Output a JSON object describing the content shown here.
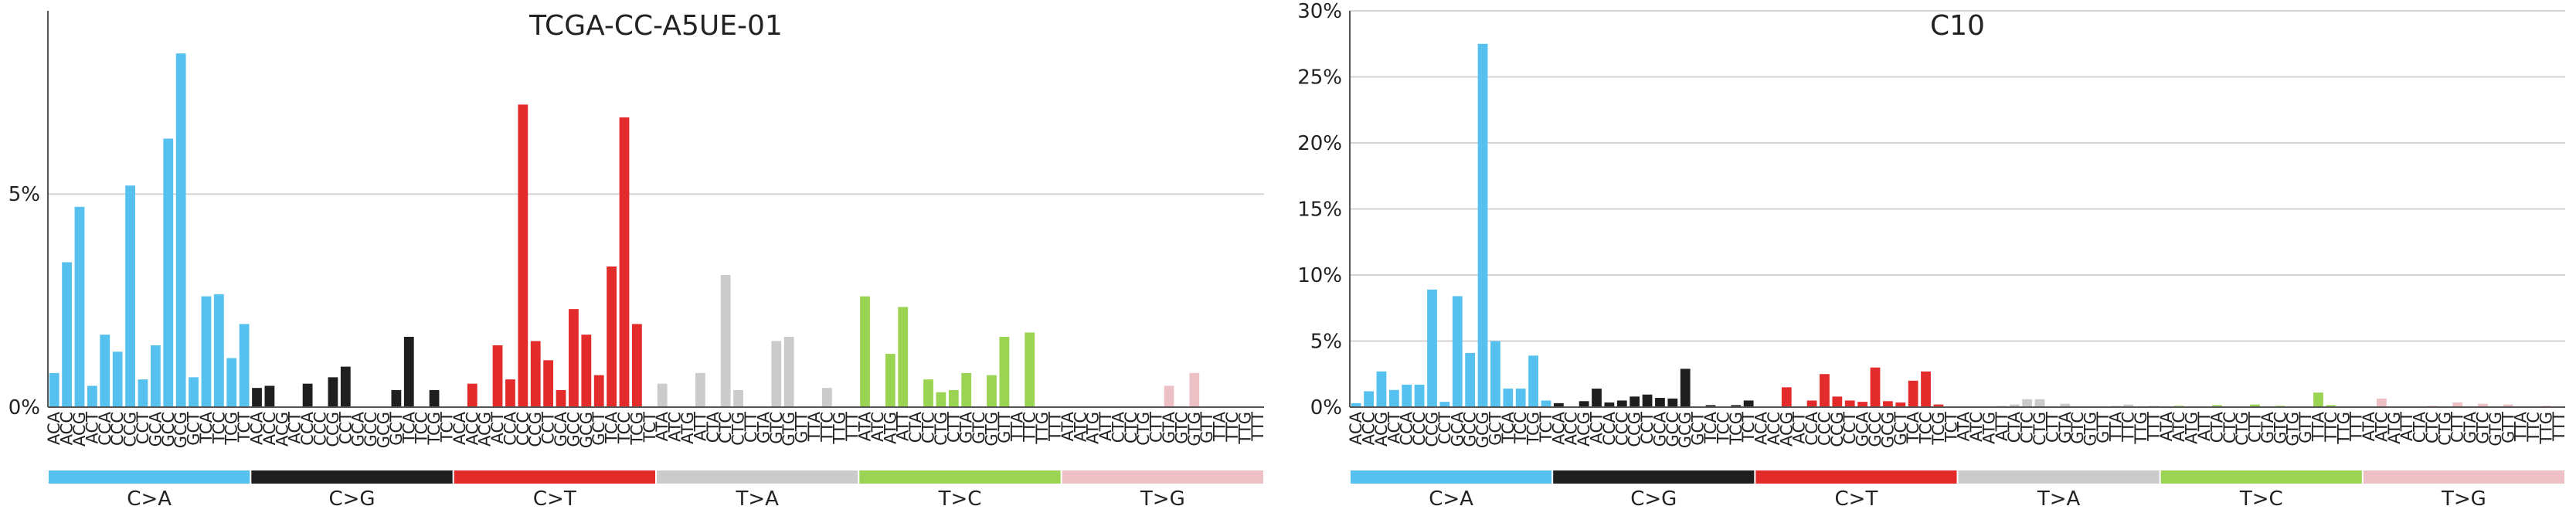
{
  "contexts": [
    "ACA",
    "ACC",
    "ACG",
    "ACT",
    "CCA",
    "CCC",
    "CCG",
    "CCT",
    "GCA",
    "GCC",
    "GCG",
    "GCT",
    "TCA",
    "TCC",
    "TCG",
    "TCT"
  ],
  "colors": {
    "C>A": "#56c1ee",
    "C>G": "#1f1f1f",
    "C>T": "#e32b2b",
    "T>A": "#cbcbcb",
    "T>C": "#9bd352",
    "T>G": "#edc0c5"
  },
  "chart_data": [
    {
      "type": "bar",
      "title": "TCGA-CC-A5UE-01",
      "ylim": [
        0,
        0.093
      ],
      "yticks": [
        0,
        0.05
      ],
      "ytick_labels": [
        "0%",
        "5%"
      ],
      "grid": true,
      "series": [
        {
          "name": "C>A",
          "values": [
            0.008,
            0.034,
            0.047,
            0.005,
            0.017,
            0.013,
            0.052,
            0.0065,
            0.0145,
            0.063,
            0.083,
            0.007,
            0.026,
            0.0265,
            0.0115,
            0.0195
          ]
        },
        {
          "name": "C>G",
          "values": [
            0.0045,
            0.005,
            0,
            0,
            0.0055,
            0,
            0.007,
            0.0095,
            0,
            0,
            0,
            0.004,
            0.0165,
            0,
            0.004,
            0
          ]
        },
        {
          "name": "C>T",
          "values": [
            0,
            0.0055,
            0,
            0.0145,
            0.0065,
            0.071,
            0.0155,
            0.011,
            0.004,
            0.023,
            0.017,
            0.0075,
            0.033,
            0.068,
            0.0195,
            0
          ]
        },
        {
          "name": "T>A",
          "values": [
            0.0055,
            0,
            0,
            0.008,
            0,
            0.031,
            0.004,
            0,
            0,
            0.0155,
            0.0165,
            0,
            0,
            0.0045,
            0,
            0
          ]
        },
        {
          "name": "T>C",
          "values": [
            0.026,
            0,
            0.0125,
            0.0235,
            0,
            0.0065,
            0.0035,
            0.004,
            0.008,
            0,
            0.0075,
            0.0165,
            0,
            0.0175,
            0,
            0
          ]
        },
        {
          "name": "T>G",
          "values": [
            0,
            0,
            0,
            0,
            0,
            0,
            0,
            0,
            0.005,
            0,
            0.008,
            0,
            0,
            0,
            0,
            0
          ]
        }
      ]
    },
    {
      "type": "bar",
      "title": "C10",
      "ylim": [
        0,
        0.3
      ],
      "yticks": [
        0,
        0.05,
        0.1,
        0.15,
        0.2,
        0.25,
        0.3
      ],
      "ytick_labels": [
        "0%",
        "5%",
        "10%",
        "15%",
        "20%",
        "25%",
        "30%"
      ],
      "grid": true,
      "series": [
        {
          "name": "C>A",
          "values": [
            0.003,
            0.012,
            0.027,
            0.013,
            0.017,
            0.017,
            0.089,
            0.004,
            0.084,
            0.041,
            0.275,
            0.05,
            0.014,
            0.014,
            0.039,
            0.005
          ]
        },
        {
          "name": "C>G",
          "values": [
            0.003,
            0,
            0.0045,
            0.014,
            0.0035,
            0.005,
            0.008,
            0.0095,
            0.007,
            0.0065,
            0.029,
            0,
            0.0015,
            0,
            0.0015,
            0.005
          ]
        },
        {
          "name": "C>T",
          "values": [
            0,
            0,
            0.015,
            0,
            0.005,
            0.025,
            0.008,
            0.005,
            0.004,
            0.03,
            0.0045,
            0.0035,
            0.02,
            0.027,
            0.002,
            0
          ]
        },
        {
          "name": "T>A",
          "values": [
            0,
            0,
            0,
            0.001,
            0.002,
            0.006,
            0.006,
            0,
            0.0025,
            0,
            0,
            0,
            0.001,
            0.002,
            0,
            0.001
          ]
        },
        {
          "name": "T>C",
          "values": [
            0,
            0.001,
            0,
            0,
            0.0015,
            0,
            0,
            0.002,
            0,
            0.001,
            0,
            0,
            0.011,
            0.0015,
            0,
            0
          ]
        },
        {
          "name": "T>G",
          "values": [
            0,
            0.0065,
            0,
            0,
            0,
            0.001,
            0,
            0.0035,
            0,
            0.0025,
            0,
            0.002,
            0,
            0,
            0.001,
            0
          ]
        }
      ]
    }
  ]
}
